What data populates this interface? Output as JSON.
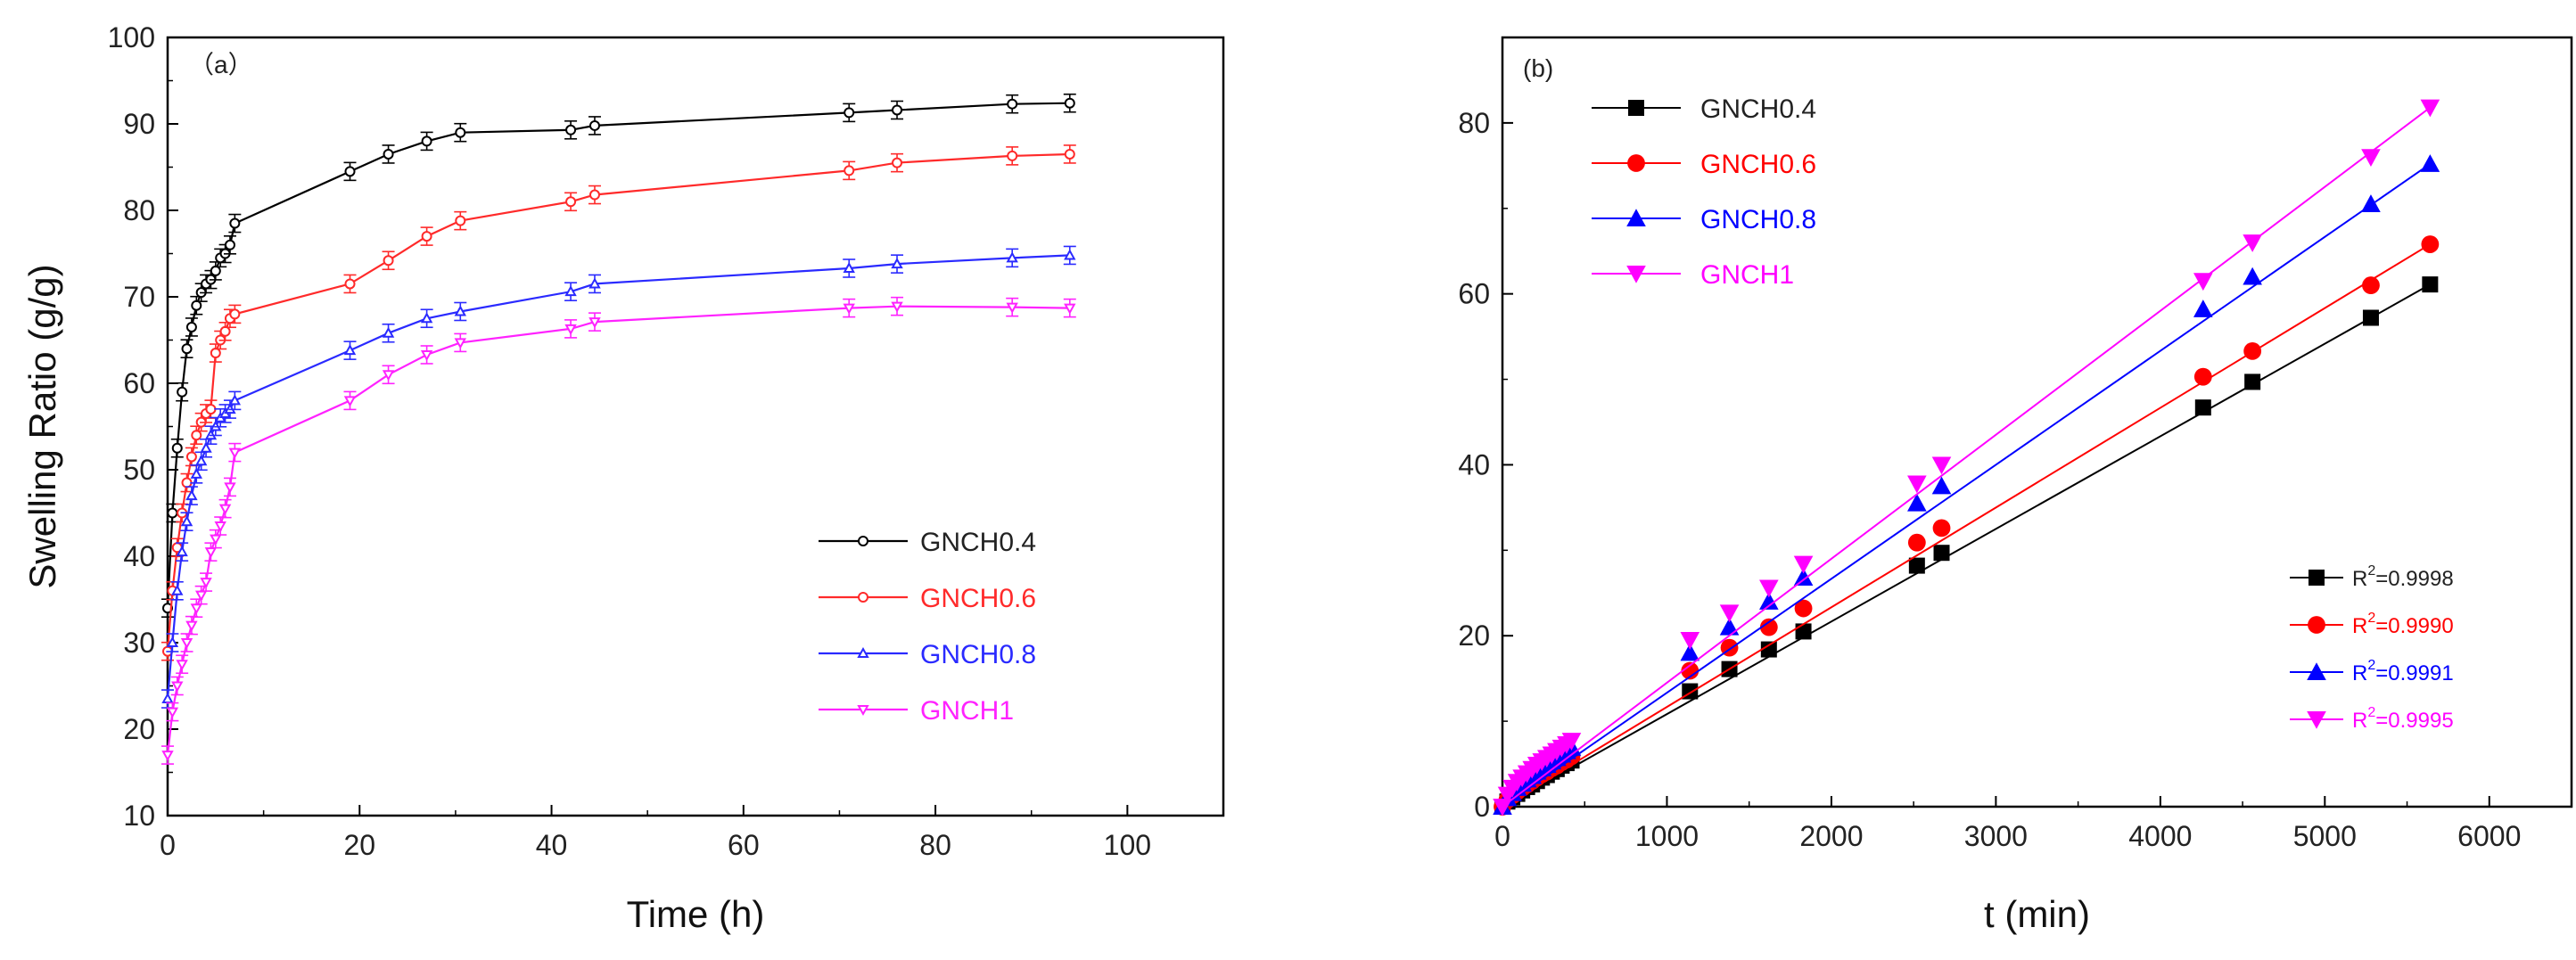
{
  "chart_data": [
    {
      "type": "line",
      "panel_label": "（a）",
      "xlabel": "Time (h)",
      "ylabel": "Swelling Ratio (g/g)",
      "xlim": [
        0,
        110
      ],
      "ylim": [
        10,
        100
      ],
      "xticks": [
        "0",
        "20",
        "40",
        "60",
        "80",
        "100"
      ],
      "yticks": [
        "10",
        "20",
        "30",
        "40",
        "50",
        "60",
        "70",
        "80",
        "90",
        "100"
      ],
      "legend_position": "lower-right",
      "series": [
        {
          "name": "GNCH0.4",
          "color": "#000000",
          "marker": "open-circle",
          "x": [
            0,
            0.5,
            1,
            1.5,
            2,
            2.5,
            3,
            3.5,
            4,
            4.5,
            5,
            5.5,
            6,
            6.5,
            7,
            19,
            23,
            27,
            30.5,
            42,
            44.5,
            71,
            76,
            88,
            94
          ],
          "y": [
            34,
            45,
            52.5,
            59,
            64,
            66.5,
            69,
            70.5,
            71.5,
            72,
            73,
            74.5,
            75,
            76,
            78.5,
            84.5,
            86.5,
            88,
            89,
            89.3,
            89.8,
            91.3,
            91.6,
            92.3,
            92.4
          ]
        },
        {
          "name": "GNCH0.6",
          "color": "#ff2a2a",
          "marker": "open-circle",
          "x": [
            0,
            0.5,
            1,
            1.5,
            2,
            2.5,
            3,
            3.5,
            4,
            4.5,
            5,
            5.5,
            6,
            6.5,
            7,
            19,
            23,
            27,
            30.5,
            42,
            44.5,
            71,
            76,
            88,
            94
          ],
          "y": [
            29,
            36,
            41,
            45,
            48.5,
            51.5,
            54,
            55.5,
            56.5,
            57,
            63.5,
            65,
            66,
            67.5,
            68,
            71.5,
            74.2,
            77,
            78.8,
            81,
            81.8,
            84.6,
            85.5,
            86.3,
            86.5
          ]
        },
        {
          "name": "GNCH0.8",
          "color": "#2a2aff",
          "marker": "open-triangle",
          "x": [
            0,
            0.5,
            1,
            1.5,
            2,
            2.5,
            3,
            3.5,
            4,
            4.5,
            5,
            5.5,
            6,
            6.5,
            7,
            19,
            23,
            27,
            30.5,
            42,
            44.5,
            71,
            76,
            88,
            94
          ],
          "y": [
            23.5,
            30,
            36,
            40.5,
            44,
            47,
            49.5,
            51,
            52.5,
            54,
            55,
            56,
            56.5,
            57,
            58,
            63.8,
            65.8,
            67.5,
            68.3,
            70.6,
            71.5,
            73.3,
            73.8,
            74.5,
            74.8
          ]
        },
        {
          "name": "GNCH1",
          "color": "#ff22ff",
          "marker": "open-down-triangle",
          "x": [
            0,
            0.5,
            1,
            1.5,
            2,
            2.5,
            3,
            3.5,
            4,
            4.5,
            5,
            5.5,
            6,
            6.5,
            7,
            19,
            23,
            27,
            30.5,
            42,
            44.5,
            71,
            76,
            88,
            94
          ],
          "y": [
            17,
            22,
            25,
            27.5,
            30,
            32,
            34,
            35.5,
            37,
            40.5,
            42,
            43.5,
            45.5,
            48,
            52,
            58,
            61,
            63.3,
            64.7,
            66.3,
            67.1,
            68.7,
            68.9,
            68.8,
            68.7
          ]
        }
      ]
    },
    {
      "type": "scatter",
      "panel_label": "(b)",
      "xlabel": "t (min)",
      "ylabel": "",
      "xlim": [
        0,
        6500
      ],
      "ylim": [
        0,
        90
      ],
      "xticks": [
        "0",
        "1000",
        "2000",
        "3000",
        "4000",
        "5000",
        "6000"
      ],
      "yticks": [
        "0",
        "20",
        "40",
        "60",
        "80"
      ],
      "legend_position": "top-left",
      "fit_legend_position": "lower-right",
      "series": [
        {
          "name": "GNCH0.4",
          "color": "#000000",
          "marker": "square",
          "fit_label": "=0.9998",
          "x": [
            0,
            30,
            60,
            90,
            120,
            150,
            180,
            210,
            240,
            270,
            300,
            330,
            360,
            390,
            420,
            1140,
            1380,
            1620,
            1830,
            2520,
            2670,
            4260,
            4560,
            5280,
            5640
          ],
          "y": [
            0,
            0.6,
            1.1,
            1.5,
            1.9,
            2.3,
            2.6,
            3.0,
            3.4,
            3.7,
            4.1,
            4.4,
            4.8,
            5.1,
            5.4,
            13.5,
            16.1,
            18.4,
            20.5,
            28.2,
            29.7,
            46.7,
            49.7,
            57.2,
            61.1
          ],
          "fit_x": [
            0,
            5640
          ],
          "fit_y": [
            0,
            61.1
          ]
        },
        {
          "name": "GNCH0.6",
          "color": "#ff0000",
          "marker": "circle",
          "fit_label": "=0.9990",
          "x": [
            0,
            30,
            60,
            90,
            120,
            150,
            180,
            210,
            240,
            270,
            300,
            330,
            360,
            390,
            420,
            1140,
            1380,
            1620,
            1830,
            2520,
            2670,
            4260,
            4560,
            5280,
            5640
          ],
          "y": [
            0,
            0.8,
            1.3,
            1.8,
            2.2,
            2.6,
            3.0,
            3.4,
            3.8,
            4.1,
            4.5,
            4.8,
            5.2,
            5.5,
            5.9,
            15.9,
            18.6,
            21.0,
            23.2,
            30.9,
            32.6,
            50.3,
            53.3,
            61.0,
            65.8
          ],
          "fit_x": [
            0,
            5640
          ],
          "fit_y": [
            0,
            65.8
          ]
        },
        {
          "name": "GNCH0.8",
          "color": "#0000ff",
          "marker": "triangle",
          "fit_label": "=0.9991",
          "x": [
            0,
            30,
            60,
            90,
            120,
            150,
            180,
            210,
            240,
            270,
            300,
            330,
            360,
            390,
            420,
            1140,
            1380,
            1620,
            1830,
            2520,
            2670,
            4260,
            4560,
            5280,
            5640
          ],
          "y": [
            0,
            1.0,
            1.6,
            2.2,
            2.7,
            3.2,
            3.6,
            4.1,
            4.5,
            4.9,
            5.3,
            5.7,
            6.1,
            6.5,
            6.9,
            18.0,
            21.0,
            24.0,
            26.8,
            35.5,
            37.5,
            58.2,
            62.0,
            70.5,
            75.2
          ],
          "fit_x": [
            0,
            5640
          ],
          "fit_y": [
            0,
            75.2
          ]
        },
        {
          "name": "GNCH1",
          "color": "#ff00ff",
          "marker": "down-triangle",
          "fit_label": "=0.9995",
          "x": [
            0,
            30,
            60,
            90,
            120,
            150,
            180,
            210,
            240,
            270,
            300,
            330,
            360,
            390,
            420,
            1140,
            1380,
            1620,
            1830,
            2520,
            2670,
            4260,
            4560,
            5280,
            5640
          ],
          "y": [
            0,
            1.4,
            2.2,
            2.9,
            3.4,
            3.9,
            4.4,
            4.9,
            5.3,
            5.7,
            6.1,
            6.5,
            6.9,
            7.3,
            7.7,
            19.5,
            22.7,
            25.6,
            28.4,
            37.8,
            40.0,
            61.5,
            66.0,
            76.0,
            81.8
          ],
          "fit_x": [
            0,
            5640
          ],
          "fit_y": [
            0,
            81.8
          ]
        }
      ]
    }
  ]
}
